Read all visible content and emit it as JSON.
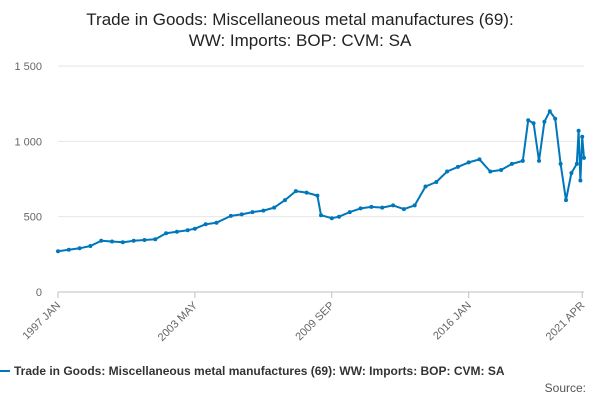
{
  "chart_data": {
    "type": "line",
    "title_line1": "Trade in Goods: Miscellaneous metal manufactures (69):",
    "title_line2": "WW: Imports: BOP: CVM: SA",
    "x_ticks": [
      "1997 JAN",
      "2003 MAY",
      "2009 SEP",
      "2016 JAN",
      "2021 APR"
    ],
    "y_ticks": [
      "0",
      "500",
      "1 000",
      "1 500"
    ],
    "ylim": [
      0,
      1500
    ],
    "grid": true,
    "legend_position": "bottom",
    "series": [
      {
        "name": "Trade in Goods: Miscellaneous metal manufactures (69): WW: Imports: BOP: CVM: SA",
        "color": "#0077bb",
        "points": [
          [
            "1997-01",
            270
          ],
          [
            "1997-07",
            280
          ],
          [
            "1998-01",
            290
          ],
          [
            "1998-07",
            305
          ],
          [
            "1999-01",
            340
          ],
          [
            "1999-07",
            335
          ],
          [
            "2000-01",
            330
          ],
          [
            "2000-07",
            340
          ],
          [
            "2001-01",
            345
          ],
          [
            "2001-07",
            350
          ],
          [
            "2002-01",
            390
          ],
          [
            "2002-07",
            400
          ],
          [
            "2003-01",
            410
          ],
          [
            "2003-05",
            420
          ],
          [
            "2003-11",
            450
          ],
          [
            "2004-05",
            460
          ],
          [
            "2005-01",
            505
          ],
          [
            "2005-07",
            515
          ],
          [
            "2006-01",
            530
          ],
          [
            "2006-07",
            540
          ],
          [
            "2007-01",
            560
          ],
          [
            "2007-07",
            610
          ],
          [
            "2008-01",
            670
          ],
          [
            "2008-07",
            660
          ],
          [
            "2009-01",
            640
          ],
          [
            "2009-03",
            510
          ],
          [
            "2009-09",
            490
          ],
          [
            "2010-01",
            500
          ],
          [
            "2010-07",
            530
          ],
          [
            "2011-01",
            555
          ],
          [
            "2011-07",
            565
          ],
          [
            "2012-01",
            560
          ],
          [
            "2012-07",
            575
          ],
          [
            "2013-01",
            550
          ],
          [
            "2013-07",
            575
          ],
          [
            "2014-01",
            700
          ],
          [
            "2014-07",
            730
          ],
          [
            "2015-01",
            800
          ],
          [
            "2015-07",
            830
          ],
          [
            "2016-01",
            860
          ],
          [
            "2016-07",
            880
          ],
          [
            "2017-01",
            800
          ],
          [
            "2017-07",
            810
          ],
          [
            "2018-01",
            850
          ],
          [
            "2018-07",
            870
          ],
          [
            "2018-10",
            1140
          ],
          [
            "2019-01",
            1120
          ],
          [
            "2019-04",
            870
          ],
          [
            "2019-07",
            1130
          ],
          [
            "2019-10",
            1200
          ],
          [
            "2020-01",
            1150
          ],
          [
            "2020-04",
            850
          ],
          [
            "2020-07",
            610
          ],
          [
            "2020-10",
            790
          ],
          [
            "2021-01",
            850
          ],
          [
            "2021-02",
            1070
          ],
          [
            "2021-03",
            740
          ],
          [
            "2021-04",
            1030
          ],
          [
            "2021-05",
            890
          ]
        ]
      }
    ]
  },
  "footer": {
    "source_label": "Source:"
  }
}
